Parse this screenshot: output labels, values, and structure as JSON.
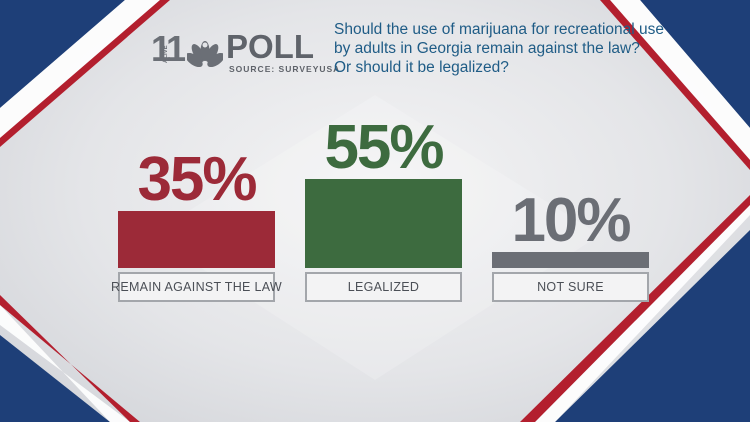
{
  "header": {
    "station_number": "11",
    "station_tag": "ALIVE",
    "poll_label": "POLL",
    "source_label": "SOURCE: SURVEYUSA",
    "question_lines": [
      "Should the use of marijuana for recreational use",
      "by adults in Georgia remain against the law?",
      "Or should it be legalized?"
    ]
  },
  "chart_data": {
    "type": "bar",
    "categories": [
      "REMAIN AGAINST THE LAW",
      "LEGALIZED",
      "NOT SURE"
    ],
    "values": [
      35,
      55,
      10
    ],
    "value_labels": [
      "35%",
      "55%",
      "10%"
    ],
    "colors": [
      "#9c2a38",
      "#3d6b3f",
      "#6b6e75"
    ],
    "unit": "%",
    "title": "",
    "xlabel": "",
    "ylabel": "",
    "grid": false,
    "legend": "none"
  },
  "colors": {
    "navy": "#1e3f78",
    "red": "#b31f2e",
    "question_blue": "#1f5c86",
    "logo_gray": "#5f636a"
  }
}
